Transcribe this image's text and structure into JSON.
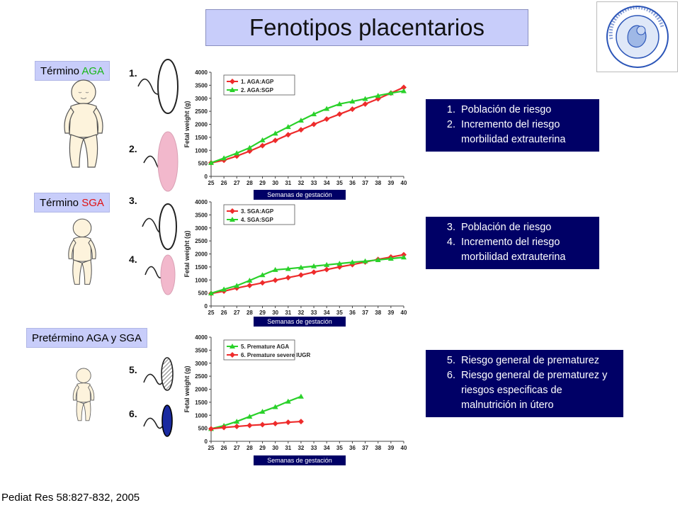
{
  "title": "Fenotipos placentarios",
  "citation": "Pediat Res 58:827-832, 2005",
  "labels": {
    "termino_aga": {
      "prefix": "Término ",
      "accent": "AGA"
    },
    "termino_sga": {
      "prefix": "Término ",
      "accent": "SGA"
    },
    "pretermino": "Pretérmino AGA y SGA"
  },
  "placenta_numbers": [
    "1.",
    "2.",
    "3.",
    "4.",
    "5.",
    "6."
  ],
  "info_boxes": [
    [
      "Población de riesgo",
      "Incremento del riesgo morbilidad extrauterina"
    ],
    [
      "Población de riesgo",
      "Incremento del riesgo morbilidad extrauterina"
    ],
    [
      "Riesgo general de prematurez",
      "Riesgo general de prematurez y riesgos especificas de malnutrición in útero"
    ]
  ],
  "info_starts": [
    1,
    3,
    5
  ],
  "colors": {
    "red": "#ee2b2b",
    "green": "#2ad12a",
    "navy": "#000066",
    "lavender": "#c8cdfa",
    "pink": "#f2b8cc"
  },
  "chart_data": [
    {
      "type": "line",
      "ylabel": "Fetal weight (g)",
      "xlabel": "Semanas de gestación",
      "ylim": [
        0,
        4000
      ],
      "yticks": [
        0,
        500,
        1000,
        1500,
        2000,
        2500,
        3000,
        3500,
        4000
      ],
      "x": [
        25,
        26,
        27,
        28,
        29,
        30,
        31,
        32,
        33,
        34,
        35,
        36,
        37,
        38,
        39,
        40
      ],
      "legend": "top-left",
      "series": [
        {
          "name": "1. AGA:AGP",
          "color": "#ee2b2b",
          "marker": "diamond",
          "x": [
            25,
            26,
            27,
            28,
            29,
            30,
            31,
            32,
            33,
            34,
            35,
            36,
            37,
            38,
            39,
            40
          ],
          "values": [
            520,
            620,
            780,
            970,
            1180,
            1380,
            1600,
            1790,
            2000,
            2200,
            2390,
            2580,
            2780,
            2980,
            3200,
            3420
          ]
        },
        {
          "name": "2. AGA:SGP",
          "color": "#2ad12a",
          "marker": "triangle",
          "x": [
            25,
            26,
            27,
            28,
            29,
            30,
            31,
            32,
            33,
            34,
            35,
            36,
            37,
            38,
            39,
            40
          ],
          "values": [
            520,
            700,
            890,
            1100,
            1390,
            1650,
            1900,
            2150,
            2390,
            2600,
            2780,
            2880,
            2980,
            3100,
            3200,
            3280
          ]
        }
      ]
    },
    {
      "type": "line",
      "ylabel": "Fetal weight (g)",
      "xlabel": "Semanas de gestación",
      "ylim": [
        0,
        4000
      ],
      "yticks": [
        0,
        500,
        1000,
        1500,
        2000,
        2500,
        3000,
        3500,
        4000
      ],
      "x": [
        25,
        26,
        27,
        28,
        29,
        30,
        31,
        32,
        33,
        34,
        35,
        36,
        37,
        38,
        39,
        40
      ],
      "legend": "top-left",
      "series": [
        {
          "name": "3. SGA:AGP",
          "color": "#ee2b2b",
          "marker": "diamond",
          "x": [
            25,
            26,
            27,
            28,
            29,
            30,
            31,
            32,
            33,
            34,
            35,
            36,
            37,
            38,
            39,
            40
          ],
          "values": [
            480,
            570,
            690,
            790,
            890,
            990,
            1090,
            1190,
            1300,
            1400,
            1500,
            1590,
            1690,
            1790,
            1880,
            1970
          ]
        },
        {
          "name": "4. SGA:SGP",
          "color": "#2ad12a",
          "marker": "triangle",
          "x": [
            25,
            26,
            27,
            28,
            29,
            30,
            31,
            32,
            33,
            34,
            35,
            36,
            37,
            38,
            39,
            40
          ],
          "values": [
            490,
            640,
            780,
            980,
            1190,
            1390,
            1430,
            1480,
            1530,
            1580,
            1630,
            1680,
            1720,
            1770,
            1820,
            1870
          ]
        }
      ]
    },
    {
      "type": "line",
      "ylabel": "Fetal weight (g)",
      "xlabel": "Semanas de gestación",
      "ylim": [
        0,
        4000
      ],
      "yticks": [
        0,
        500,
        1000,
        1500,
        2000,
        2500,
        3000,
        3500,
        4000
      ],
      "x": [
        25,
        26,
        27,
        28,
        29,
        30,
        31,
        32,
        33,
        34,
        35,
        36,
        37,
        38,
        39,
        40
      ],
      "legend": "top-left",
      "series": [
        {
          "name": "5. Premature AGA",
          "color": "#2ad12a",
          "marker": "triangle",
          "x": [
            25,
            26,
            27,
            28,
            29,
            30,
            31,
            32
          ],
          "values": [
            480,
            600,
            760,
            950,
            1140,
            1320,
            1530,
            1720
          ]
        },
        {
          "name": "6. Premature severe IUGR",
          "color": "#ee2b2b",
          "marker": "diamond",
          "x": [
            25,
            26,
            27,
            28,
            29,
            30,
            31,
            32
          ],
          "values": [
            480,
            530,
            570,
            610,
            640,
            680,
            730,
            760
          ]
        }
      ]
    }
  ]
}
